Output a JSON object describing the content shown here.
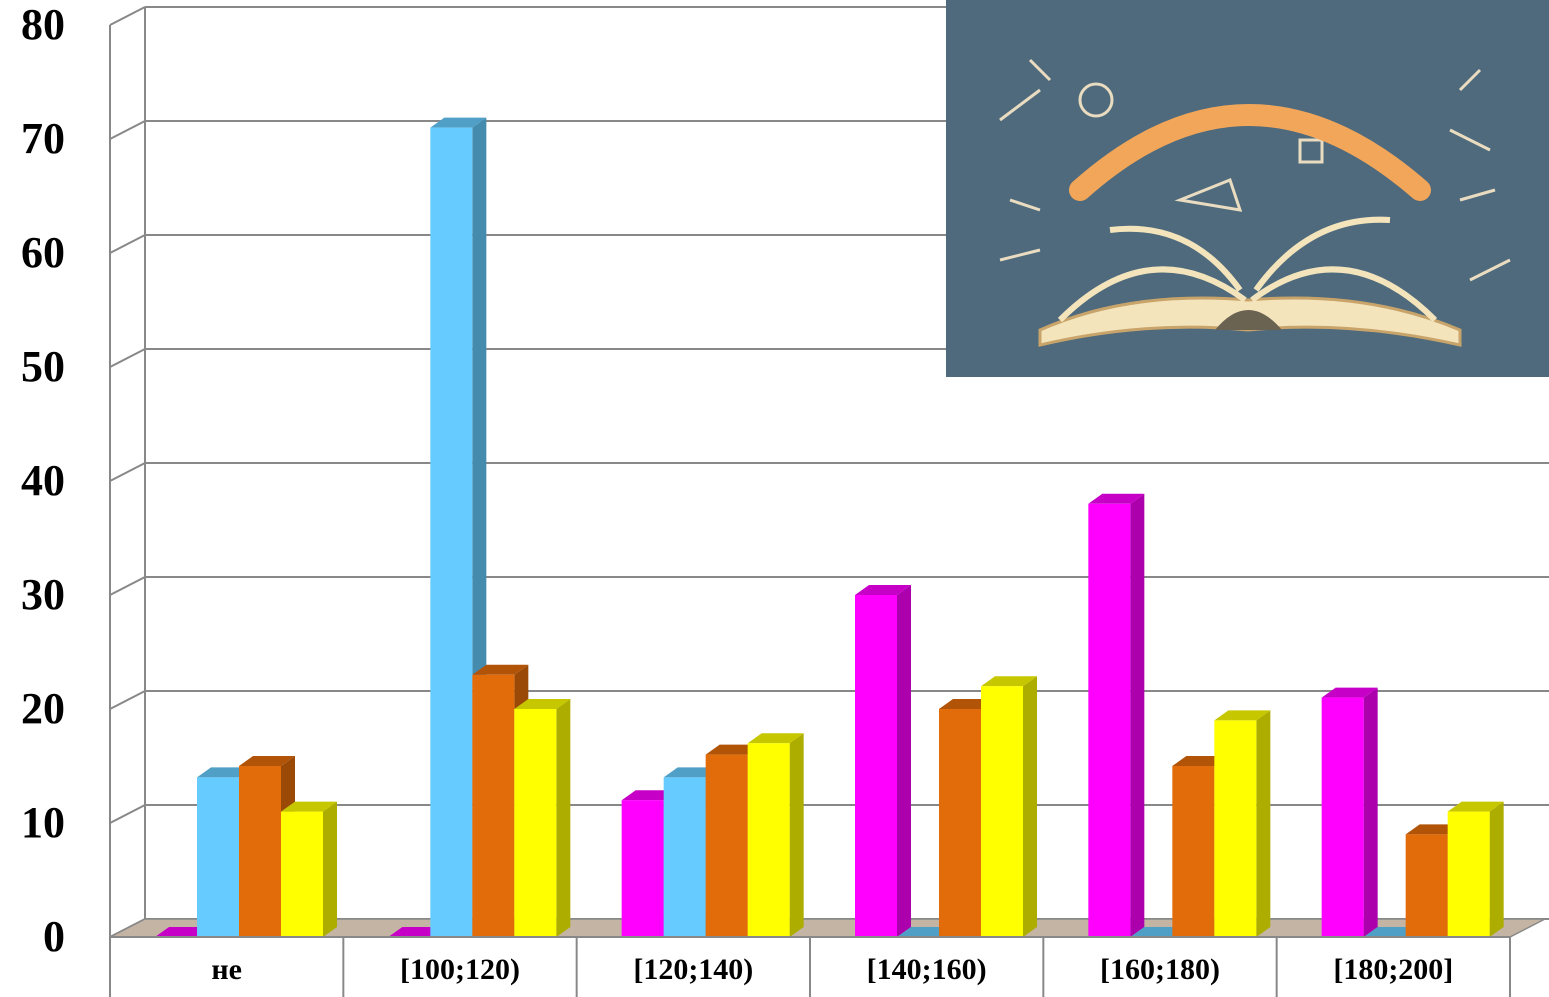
{
  "chart_data": {
    "type": "bar3d",
    "categories": [
      "не",
      "[100;120)",
      "[120;140)",
      "[140;160)",
      "[160;180)",
      "[180;200]"
    ],
    "series": [
      {
        "color": "#ff00ff",
        "values": [
          0,
          0,
          12,
          30,
          38,
          21
        ]
      },
      {
        "color": "#66ccff",
        "values": [
          14,
          71,
          14,
          0,
          0,
          0
        ]
      },
      {
        "color": "#e36c0a",
        "values": [
          15,
          23,
          16,
          20,
          15,
          9
        ]
      },
      {
        "color": "#ffff00",
        "values": [
          11,
          20,
          17,
          22,
          19,
          11
        ]
      }
    ],
    "ylim": [
      0,
      80
    ],
    "yticks": [
      0,
      10,
      20,
      30,
      40,
      50,
      60,
      70,
      80
    ],
    "grid": true
  }
}
